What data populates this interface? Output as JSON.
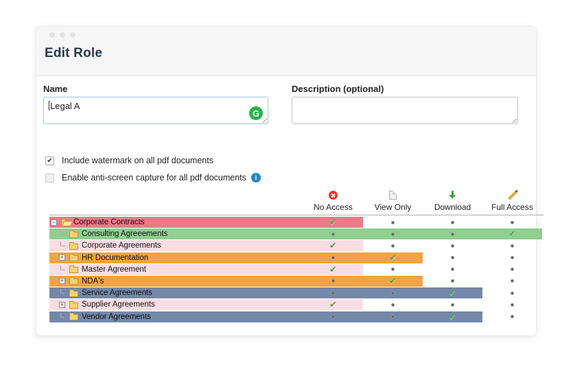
{
  "window": {
    "title": "Edit Role"
  },
  "form": {
    "name_label": "Name",
    "name_value": "Legal A",
    "description_label": "Description (optional)",
    "description_value": "",
    "watermark_checkbox": {
      "label": "Include watermark on all pdf documents",
      "checked": true
    },
    "anti_screen_checkbox": {
      "label": "Enable anti-screen capture for all pdf documents",
      "checked": false
    }
  },
  "permissions": {
    "columns": [
      {
        "label": "No Access",
        "icon": "no-access-icon"
      },
      {
        "label": "View Only",
        "icon": "view-only-icon"
      },
      {
        "label": "Download",
        "icon": "download-icon"
      },
      {
        "label": "Full Access",
        "icon": "full-access-icon"
      }
    ],
    "rows": [
      {
        "label": "Corporate Contracts",
        "level": 0,
        "expander": "collapse",
        "folder": "open",
        "access": "No Access",
        "highlight": "#E77C87"
      },
      {
        "label": "Consulting Agreeements",
        "level": 1,
        "expander": "leaf",
        "folder": "closed",
        "access": "Full Access",
        "highlight": "#90CE92"
      },
      {
        "label": "Corporate Agreements",
        "level": 1,
        "expander": "leaf",
        "folder": "closed",
        "access": "No Access",
        "highlight": "#FADDE3"
      },
      {
        "label": "HR Documentation",
        "level": 1,
        "expander": "expand",
        "folder": "closed",
        "access": "View Only",
        "highlight": "#F2A347"
      },
      {
        "label": "Master Agreement",
        "level": 1,
        "expander": "leaf",
        "folder": "closed",
        "access": "No Access",
        "highlight": "#FADDE3"
      },
      {
        "label": "NDA's",
        "level": 1,
        "expander": "expand",
        "folder": "closed",
        "access": "View Only",
        "highlight": "#F2A347"
      },
      {
        "label": "Service Agreements",
        "level": 1,
        "expander": "leaf",
        "folder": "closed",
        "access": "Download",
        "highlight": "#7488AA"
      },
      {
        "label": "Supplier Agreements",
        "level": 1,
        "expander": "expand",
        "folder": "closed",
        "access": "No Access",
        "highlight": "#FADDE3"
      },
      {
        "label": "Vendor Agreements",
        "level": 1,
        "expander": "leaf",
        "folder": "closed",
        "access": "Download",
        "highlight": "#7488AA"
      }
    ]
  },
  "icons": {
    "check": "✔",
    "checkbox_check": "✔",
    "grammarly": "G",
    "info": "i",
    "expanders": {
      "collapse": "−",
      "expand": "+",
      "leaf": ""
    }
  },
  "colors": {
    "no_access_red": "#E23B34",
    "download_green": "#3FA73F",
    "pencil_orange": "#E0A43C",
    "check_green": "#46A84B",
    "row_red": "#E77C87",
    "row_green": "#90CE92",
    "row_pink": "#FADDE3",
    "row_orange": "#F2A347",
    "row_blue": "#7488AA",
    "focus_border": "#9EC4E4",
    "grammarly_green": "#2BB24C",
    "info_blue": "#2286C3"
  },
  "layout_metrics": {
    "label_col_width": 370,
    "perm_col_width": 87
  }
}
